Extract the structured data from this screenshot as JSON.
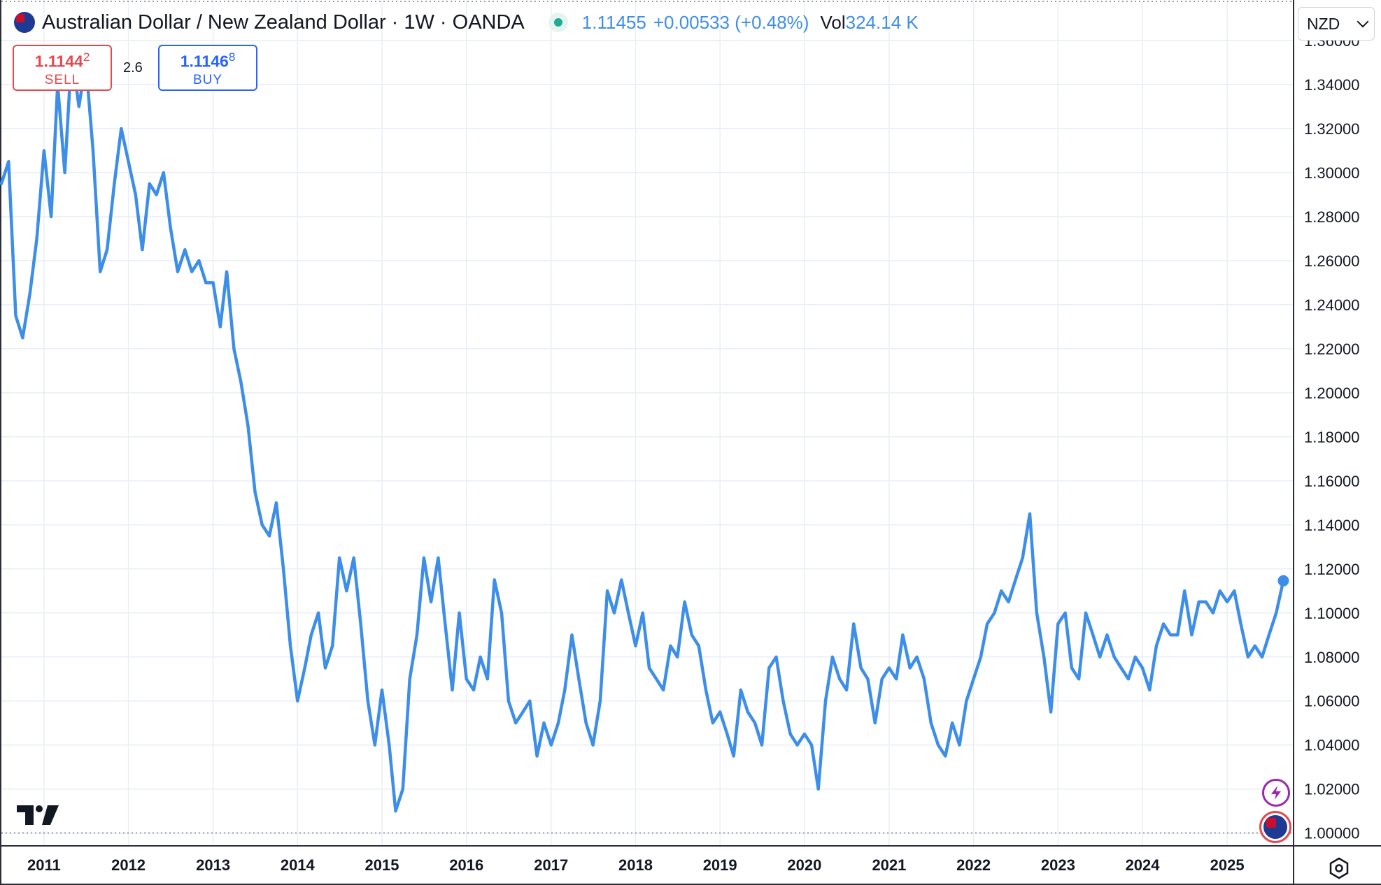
{
  "header": {
    "title": "Australian Dollar / New Zealand Dollar · 1W · OANDA",
    "last_price": "1.11455",
    "change": "+0.00533 (+0.48%)",
    "volume_label": "Vol",
    "volume_value": "324.14 K"
  },
  "trade": {
    "sell_price_main": "1.1144",
    "sell_price_sup": "2",
    "sell_label": "SELL",
    "spread": "2.6",
    "buy_price_main": "1.1146",
    "buy_price_sup": "8",
    "buy_label": "BUY"
  },
  "currency_select": {
    "value": "NZD"
  },
  "colors": {
    "line": "#3d8ee9",
    "sell": "#e5484d",
    "buy": "#2962ff",
    "grid": "#e9eef6",
    "axis_text": "#131722"
  },
  "icons": [
    "aud-flag-icon",
    "live-status-icon",
    "tradingview-logo-icon",
    "bolt-icon",
    "aud-avatar-icon",
    "chevron-down-icon",
    "settings-icon"
  ],
  "chart_data": {
    "type": "line",
    "series": [
      {
        "values": [
          [
            "2010-07-01",
            1.295
          ],
          [
            "2010-08-01",
            1.305
          ],
          [
            "2010-09-01",
            1.235
          ],
          [
            "2010-10-01",
            1.225
          ],
          [
            "2010-11-01",
            1.245
          ],
          [
            "2010-12-01",
            1.27
          ],
          [
            "2011-01-01",
            1.31
          ],
          [
            "2011-02-01",
            1.28
          ],
          [
            "2011-03-01",
            1.34
          ],
          [
            "2011-04-01",
            1.3
          ],
          [
            "2011-05-01",
            1.355
          ],
          [
            "2011-06-01",
            1.33
          ],
          [
            "2011-07-01",
            1.35
          ],
          [
            "2011-08-01",
            1.31
          ],
          [
            "2011-09-01",
            1.255
          ],
          [
            "2011-10-01",
            1.265
          ],
          [
            "2011-11-01",
            1.295
          ],
          [
            "2011-12-01",
            1.32
          ],
          [
            "2012-01-01",
            1.305
          ],
          [
            "2012-02-01",
            1.29
          ],
          [
            "2012-03-01",
            1.265
          ],
          [
            "2012-04-01",
            1.295
          ],
          [
            "2012-05-01",
            1.29
          ],
          [
            "2012-06-01",
            1.3
          ],
          [
            "2012-07-01",
            1.275
          ],
          [
            "2012-08-01",
            1.255
          ],
          [
            "2012-09-01",
            1.265
          ],
          [
            "2012-10-01",
            1.255
          ],
          [
            "2012-11-01",
            1.26
          ],
          [
            "2012-12-01",
            1.25
          ],
          [
            "2013-01-01",
            1.25
          ],
          [
            "2013-02-01",
            1.23
          ],
          [
            "2013-03-01",
            1.255
          ],
          [
            "2013-04-01",
            1.22
          ],
          [
            "2013-05-01",
            1.205
          ],
          [
            "2013-06-01",
            1.185
          ],
          [
            "2013-07-01",
            1.155
          ],
          [
            "2013-08-01",
            1.14
          ],
          [
            "2013-09-01",
            1.135
          ],
          [
            "2013-10-01",
            1.15
          ],
          [
            "2013-11-01",
            1.12
          ],
          [
            "2013-12-01",
            1.085
          ],
          [
            "2014-01-01",
            1.06
          ],
          [
            "2014-02-01",
            1.075
          ],
          [
            "2014-03-01",
            1.09
          ],
          [
            "2014-04-01",
            1.1
          ],
          [
            "2014-05-01",
            1.075
          ],
          [
            "2014-06-01",
            1.085
          ],
          [
            "2014-07-01",
            1.125
          ],
          [
            "2014-08-01",
            1.11
          ],
          [
            "2014-09-01",
            1.125
          ],
          [
            "2014-10-01",
            1.095
          ],
          [
            "2014-11-01",
            1.06
          ],
          [
            "2014-12-01",
            1.04
          ],
          [
            "2015-01-01",
            1.065
          ],
          [
            "2015-02-01",
            1.04
          ],
          [
            "2015-03-01",
            1.01
          ],
          [
            "2015-04-01",
            1.02
          ],
          [
            "2015-05-01",
            1.07
          ],
          [
            "2015-06-01",
            1.09
          ],
          [
            "2015-07-01",
            1.125
          ],
          [
            "2015-08-01",
            1.105
          ],
          [
            "2015-09-01",
            1.125
          ],
          [
            "2015-10-01",
            1.095
          ],
          [
            "2015-11-01",
            1.065
          ],
          [
            "2015-12-01",
            1.1
          ],
          [
            "2016-01-01",
            1.07
          ],
          [
            "2016-02-01",
            1.065
          ],
          [
            "2016-03-01",
            1.08
          ],
          [
            "2016-04-01",
            1.07
          ],
          [
            "2016-05-01",
            1.115
          ],
          [
            "2016-06-01",
            1.1
          ],
          [
            "2016-07-01",
            1.06
          ],
          [
            "2016-08-01",
            1.05
          ],
          [
            "2016-09-01",
            1.055
          ],
          [
            "2016-10-01",
            1.06
          ],
          [
            "2016-11-01",
            1.035
          ],
          [
            "2016-12-01",
            1.05
          ],
          [
            "2017-01-01",
            1.04
          ],
          [
            "2017-02-01",
            1.05
          ],
          [
            "2017-03-01",
            1.065
          ],
          [
            "2017-04-01",
            1.09
          ],
          [
            "2017-05-01",
            1.07
          ],
          [
            "2017-06-01",
            1.05
          ],
          [
            "2017-07-01",
            1.04
          ],
          [
            "2017-08-01",
            1.06
          ],
          [
            "2017-09-01",
            1.11
          ],
          [
            "2017-10-01",
            1.1
          ],
          [
            "2017-11-01",
            1.115
          ],
          [
            "2017-12-01",
            1.1
          ],
          [
            "2018-01-01",
            1.085
          ],
          [
            "2018-02-01",
            1.1
          ],
          [
            "2018-03-01",
            1.075
          ],
          [
            "2018-04-01",
            1.07
          ],
          [
            "2018-05-01",
            1.065
          ],
          [
            "2018-06-01",
            1.085
          ],
          [
            "2018-07-01",
            1.08
          ],
          [
            "2018-08-01",
            1.105
          ],
          [
            "2018-09-01",
            1.09
          ],
          [
            "2018-10-01",
            1.085
          ],
          [
            "2018-11-01",
            1.065
          ],
          [
            "2018-12-01",
            1.05
          ],
          [
            "2019-01-01",
            1.055
          ],
          [
            "2019-02-01",
            1.045
          ],
          [
            "2019-03-01",
            1.035
          ],
          [
            "2019-04-01",
            1.065
          ],
          [
            "2019-05-01",
            1.055
          ],
          [
            "2019-06-01",
            1.05
          ],
          [
            "2019-07-01",
            1.04
          ],
          [
            "2019-08-01",
            1.075
          ],
          [
            "2019-09-01",
            1.08
          ],
          [
            "2019-10-01",
            1.06
          ],
          [
            "2019-11-01",
            1.045
          ],
          [
            "2019-12-01",
            1.04
          ],
          [
            "2020-01-01",
            1.045
          ],
          [
            "2020-02-01",
            1.04
          ],
          [
            "2020-03-01",
            1.02
          ],
          [
            "2020-04-01",
            1.06
          ],
          [
            "2020-05-01",
            1.08
          ],
          [
            "2020-06-01",
            1.07
          ],
          [
            "2020-07-01",
            1.065
          ],
          [
            "2020-08-01",
            1.095
          ],
          [
            "2020-09-01",
            1.075
          ],
          [
            "2020-10-01",
            1.07
          ],
          [
            "2020-11-01",
            1.05
          ],
          [
            "2020-12-01",
            1.07
          ],
          [
            "2021-01-01",
            1.075
          ],
          [
            "2021-02-01",
            1.07
          ],
          [
            "2021-03-01",
            1.09
          ],
          [
            "2021-04-01",
            1.075
          ],
          [
            "2021-05-01",
            1.08
          ],
          [
            "2021-06-01",
            1.07
          ],
          [
            "2021-07-01",
            1.05
          ],
          [
            "2021-08-01",
            1.04
          ],
          [
            "2021-09-01",
            1.035
          ],
          [
            "2021-10-01",
            1.05
          ],
          [
            "2021-11-01",
            1.04
          ],
          [
            "2021-12-01",
            1.06
          ],
          [
            "2022-01-01",
            1.07
          ],
          [
            "2022-02-01",
            1.08
          ],
          [
            "2022-03-01",
            1.095
          ],
          [
            "2022-04-01",
            1.1
          ],
          [
            "2022-05-01",
            1.11
          ],
          [
            "2022-06-01",
            1.105
          ],
          [
            "2022-07-01",
            1.115
          ],
          [
            "2022-08-01",
            1.125
          ],
          [
            "2022-09-01",
            1.145
          ],
          [
            "2022-10-01",
            1.1
          ],
          [
            "2022-11-01",
            1.08
          ],
          [
            "2022-12-01",
            1.055
          ],
          [
            "2023-01-01",
            1.095
          ],
          [
            "2023-02-01",
            1.1
          ],
          [
            "2023-03-01",
            1.075
          ],
          [
            "2023-04-01",
            1.07
          ],
          [
            "2023-05-01",
            1.1
          ],
          [
            "2023-06-01",
            1.09
          ],
          [
            "2023-07-01",
            1.08
          ],
          [
            "2023-08-01",
            1.09
          ],
          [
            "2023-09-01",
            1.08
          ],
          [
            "2023-10-01",
            1.075
          ],
          [
            "2023-11-01",
            1.07
          ],
          [
            "2023-12-01",
            1.08
          ],
          [
            "2024-01-01",
            1.075
          ],
          [
            "2024-02-01",
            1.065
          ],
          [
            "2024-03-01",
            1.085
          ],
          [
            "2024-04-01",
            1.095
          ],
          [
            "2024-05-01",
            1.09
          ],
          [
            "2024-06-01",
            1.09
          ],
          [
            "2024-07-01",
            1.11
          ],
          [
            "2024-08-01",
            1.09
          ],
          [
            "2024-09-01",
            1.105
          ],
          [
            "2024-10-01",
            1.105
          ],
          [
            "2024-11-01",
            1.1
          ],
          [
            "2024-12-01",
            1.11
          ],
          [
            "2025-01-01",
            1.105
          ],
          [
            "2025-02-01",
            1.11
          ],
          [
            "2025-03-01",
            1.095
          ],
          [
            "2025-04-01",
            1.08
          ],
          [
            "2025-05-01",
            1.085
          ],
          [
            "2025-06-01",
            1.08
          ],
          [
            "2025-07-01",
            1.09
          ],
          [
            "2025-08-01",
            1.1
          ],
          [
            "2025-09-01",
            1.1146
          ]
        ]
      }
    ],
    "x_tick_labels": [
      "2011",
      "2012",
      "2013",
      "2014",
      "2015",
      "2016",
      "2017",
      "2018",
      "2019",
      "2020",
      "2021",
      "2022",
      "2023",
      "2024",
      "2025"
    ],
    "x_range": [
      "2010-07-01",
      "2025-10-15"
    ],
    "y_tick_labels": [
      "1.36000",
      "1.34000",
      "1.32000",
      "1.30000",
      "1.28000",
      "1.26000",
      "1.24000",
      "1.22000",
      "1.20000",
      "1.18000",
      "1.16000",
      "1.14000",
      "1.12000",
      "1.10000",
      "1.08000",
      "1.06000",
      "1.04000",
      "1.02000",
      "1.00000"
    ],
    "y_ticks": [
      1.36,
      1.34,
      1.32,
      1.3,
      1.28,
      1.26,
      1.24,
      1.22,
      1.2,
      1.18,
      1.16,
      1.14,
      1.12,
      1.1,
      1.08,
      1.06,
      1.04,
      1.02,
      1.0
    ],
    "ylim": [
      0.9945,
      1.3778
    ],
    "grid": true,
    "dotted_reference_levels": [
      1.3778,
      1.0
    ]
  }
}
